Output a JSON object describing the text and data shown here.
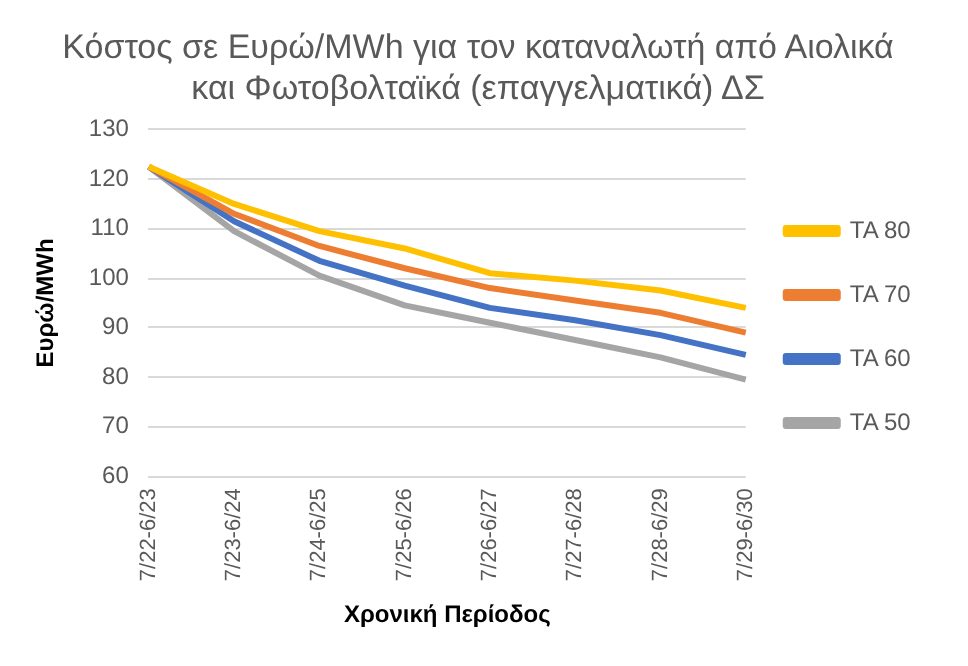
{
  "chart_data": {
    "type": "line",
    "title": "Κόστος σε Ευρώ/MWh για τον καταναλωτή από Αιολικά και Φωτοβολταϊκά (επαγγελματικά) ΔΣ",
    "xlabel": "Χρονική Περίοδος",
    "ylabel": "Ευρώ/MWh",
    "categories": [
      "7/22-6/23",
      "7/23-6/24",
      "7/24-6/25",
      "7/25-6/26",
      "7/26-6/27",
      "7/27-6/28",
      "7/28-6/29",
      "7/29-6/30"
    ],
    "series": [
      {
        "name": "TA 80",
        "color": "#ffc000",
        "values": [
          122.5,
          115,
          109.5,
          106,
          101,
          99.5,
          97.5,
          94
        ]
      },
      {
        "name": "TA 70",
        "color": "#ed7d31",
        "values": [
          122.5,
          113,
          106.5,
          102,
          98,
          95.5,
          93,
          89
        ]
      },
      {
        "name": "TA 60",
        "color": "#4472c4",
        "values": [
          122.5,
          111.5,
          103.5,
          98.5,
          94,
          91.5,
          88.5,
          84.5
        ]
      },
      {
        "name": "TA 50",
        "color": "#a5a5a5",
        "values": [
          122.5,
          109.5,
          100.5,
          94.5,
          91,
          87.5,
          84,
          79.5
        ]
      }
    ],
    "ylim": [
      60,
      130
    ],
    "yticks": [
      60,
      70,
      80,
      90,
      100,
      110,
      120,
      130
    ],
    "grid": "y",
    "legend": "right",
    "marker": "none",
    "line_style": "solid"
  }
}
